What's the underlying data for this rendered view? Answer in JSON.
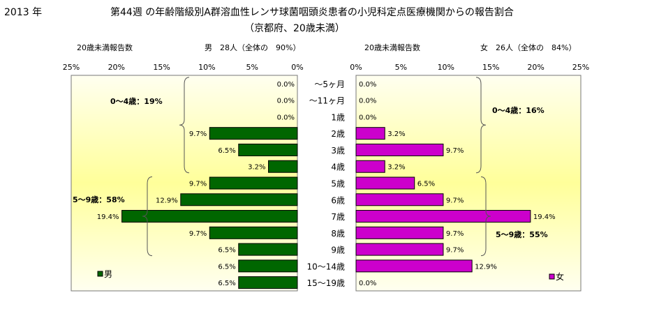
{
  "header": {
    "year": "2013 年",
    "title_line1": "第44週 の年齢階級別A群溶血性レンサ球菌咽頭炎患者の小児科定点医療機関からの報告割合",
    "title_line2": "（京都府、20歳未満）"
  },
  "chart_data": [
    {
      "type": "bar",
      "orientation": "horizontal",
      "side": "left",
      "categories": [
        "〜5ヶ月",
        "〜11ヶ月",
        "1歳",
        "2歳",
        "3歳",
        "4歳",
        "5歳",
        "6歳",
        "7歳",
        "8歳",
        "9歳",
        "10〜14歳",
        "15〜19歳"
      ],
      "series": [
        {
          "name": "男",
          "values": [
            0.0,
            0.0,
            0.0,
            9.7,
            6.5,
            3.2,
            9.7,
            12.9,
            19.4,
            9.7,
            6.5,
            6.5,
            6.5
          ],
          "labels": [
            "0.0%",
            "0.0%",
            "0.0%",
            "9.7%",
            "6.5%",
            "3.2%",
            "9.7%",
            "12.9%",
            "19.4%",
            "9.7%",
            "6.5%",
            "6.5%",
            "6.5%"
          ],
          "color": "#006600"
        }
      ],
      "axis_title_left": "20歳未満報告数",
      "axis_title_right": "男　28人（全体の　90%）",
      "x_ticks": [
        "25%",
        "20%",
        "15%",
        "10%",
        "5%",
        "0%"
      ],
      "xlim": [
        25,
        0
      ],
      "annotations": [
        "0〜4歳：19%",
        "5〜9歳：58%"
      ],
      "legend": "男",
      "legend_position": "bottom-left"
    },
    {
      "type": "bar",
      "orientation": "horizontal",
      "side": "right",
      "categories": [
        "〜5ヶ月",
        "〜11ヶ月",
        "1歳",
        "2歳",
        "3歳",
        "4歳",
        "5歳",
        "6歳",
        "7歳",
        "8歳",
        "9歳",
        "10〜14歳",
        "15〜19歳"
      ],
      "series": [
        {
          "name": "女",
          "values": [
            0.0,
            0.0,
            0.0,
            3.2,
            9.7,
            3.2,
            6.5,
            9.7,
            19.4,
            9.7,
            9.7,
            12.9,
            0.0
          ],
          "labels": [
            "0.0%",
            "0.0%",
            "0.0%",
            "3.2%",
            "9.7%",
            "3.2%",
            "6.5%",
            "9.7%",
            "19.4%",
            "9.7%",
            "9.7%",
            "12.9%",
            "0.0%"
          ],
          "color": "#cc00cc"
        }
      ],
      "axis_title_left": "20歳未満報告数",
      "axis_title_right": "女　26人（全体の　84%）",
      "x_ticks": [
        "0%",
        "5%",
        "10%",
        "15%",
        "20%",
        "25%"
      ],
      "xlim": [
        0,
        25
      ],
      "annotations": [
        "0〜4歳：16%",
        "5〜9歳：55%"
      ],
      "legend": "女",
      "legend_position": "bottom-right"
    }
  ],
  "colors": {
    "male_bar": "#006600",
    "female_bar": "#cc00cc",
    "plot_gradient_edge": "#fffff0",
    "plot_gradient_mid": "#ffff9a",
    "bar_stroke": "#000000"
  }
}
